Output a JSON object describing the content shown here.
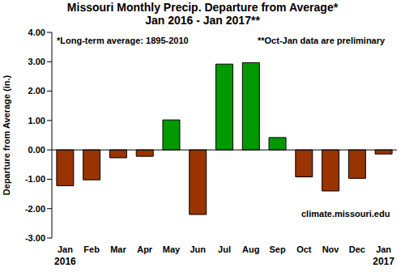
{
  "chart_data": {
    "type": "bar",
    "title": "Missouri Monthly Precip. Departure from Average*",
    "subtitle": "Jan 2016 - Jan 2017**",
    "y_label": "Departure from Average (in.)",
    "categories": [
      "Jan",
      "Feb",
      "Mar",
      "Apr",
      "May",
      "Jun",
      "Jul",
      "Aug",
      "Sep",
      "Oct",
      "Nov",
      "Dec",
      "Jan"
    ],
    "values": [
      -1.22,
      -1.02,
      -0.27,
      -0.22,
      1.02,
      -2.2,
      2.92,
      2.97,
      0.42,
      -0.92,
      -1.4,
      -0.97,
      -0.14
    ],
    "colors": [
      "#993300",
      "#993300",
      "#993300",
      "#993300",
      "#009900",
      "#993300",
      "#009900",
      "#009900",
      "#009900",
      "#993300",
      "#993300",
      "#993300",
      "#993300"
    ],
    "ylim": [
      -3,
      4
    ],
    "yticks": [
      {
        "value": -3,
        "label": "-3.00"
      },
      {
        "value": -2,
        "label": "-2.00"
      },
      {
        "value": -1,
        "label": "-1.00"
      },
      {
        "value": 0,
        "label": "0.00"
      },
      {
        "value": 1,
        "label": "1.00"
      },
      {
        "value": 2,
        "label": "2.00"
      },
      {
        "value": 3,
        "label": "3.00"
      },
      {
        "value": 4,
        "label": "4.00"
      }
    ],
    "grid": false,
    "annotations": [
      "*Long-term average: 1895-2010",
      "**Oct-Jan data are preliminary",
      "climate.missouri.edu",
      "2016",
      "2017"
    ]
  }
}
